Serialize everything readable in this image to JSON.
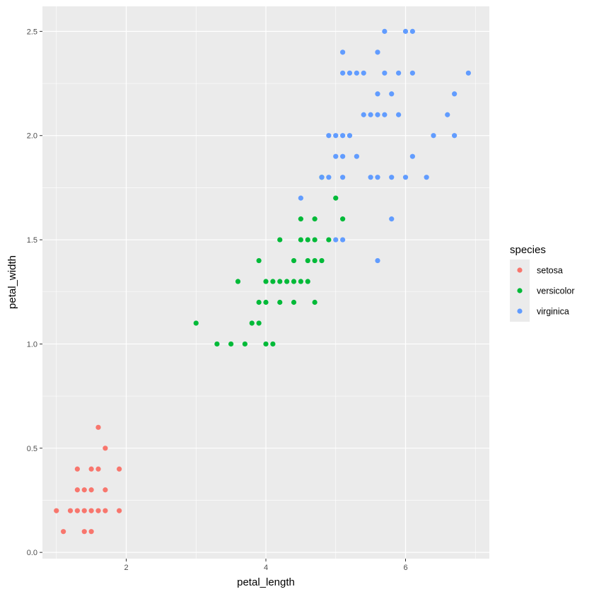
{
  "chart_data": {
    "type": "scatter",
    "title": "",
    "xlabel": "petal_length",
    "ylabel": "petal_width",
    "xlim": [
      0.8,
      7.2
    ],
    "ylim": [
      -0.03,
      2.62
    ],
    "x_ticks": [
      2,
      4,
      6
    ],
    "y_ticks": [
      0.0,
      0.5,
      1.0,
      1.5,
      2.0,
      2.5
    ],
    "x_tick_labels": [
      "2",
      "4",
      "6"
    ],
    "y_tick_labels": [
      "0.0",
      "0.5",
      "1.0",
      "1.5",
      "2.0",
      "2.5"
    ],
    "grid": true,
    "panel_background": "#ebebeb",
    "grid_color": "#ffffff",
    "legend": {
      "title": "species",
      "position": "right",
      "background": "#ebebeb"
    },
    "series": [
      {
        "name": "setosa",
        "color": "#f8766d",
        "points": [
          [
            1.0,
            0.2
          ],
          [
            1.1,
            0.1
          ],
          [
            1.2,
            0.2
          ],
          [
            1.3,
            0.2
          ],
          [
            1.3,
            0.3
          ],
          [
            1.3,
            0.4
          ],
          [
            1.4,
            0.1
          ],
          [
            1.4,
            0.2
          ],
          [
            1.4,
            0.3
          ],
          [
            1.5,
            0.1
          ],
          [
            1.5,
            0.2
          ],
          [
            1.5,
            0.3
          ],
          [
            1.5,
            0.4
          ],
          [
            1.6,
            0.2
          ],
          [
            1.6,
            0.4
          ],
          [
            1.6,
            0.6
          ],
          [
            1.7,
            0.2
          ],
          [
            1.7,
            0.3
          ],
          [
            1.7,
            0.5
          ],
          [
            1.9,
            0.2
          ],
          [
            1.9,
            0.4
          ]
        ]
      },
      {
        "name": "versicolor",
        "color": "#00ba38",
        "points": [
          [
            3.0,
            1.1
          ],
          [
            3.3,
            1.0
          ],
          [
            3.5,
            1.0
          ],
          [
            3.6,
            1.3
          ],
          [
            3.7,
            1.0
          ],
          [
            3.8,
            1.1
          ],
          [
            3.9,
            1.1
          ],
          [
            3.9,
            1.2
          ],
          [
            3.9,
            1.4
          ],
          [
            4.0,
            1.0
          ],
          [
            4.0,
            1.2
          ],
          [
            4.0,
            1.3
          ],
          [
            4.1,
            1.0
          ],
          [
            4.1,
            1.3
          ],
          [
            4.2,
            1.2
          ],
          [
            4.2,
            1.3
          ],
          [
            4.2,
            1.5
          ],
          [
            4.3,
            1.3
          ],
          [
            4.4,
            1.2
          ],
          [
            4.4,
            1.3
          ],
          [
            4.4,
            1.4
          ],
          [
            4.5,
            1.3
          ],
          [
            4.5,
            1.5
          ],
          [
            4.5,
            1.6
          ],
          [
            4.6,
            1.3
          ],
          [
            4.6,
            1.4
          ],
          [
            4.6,
            1.5
          ],
          [
            4.7,
            1.2
          ],
          [
            4.7,
            1.4
          ],
          [
            4.7,
            1.5
          ],
          [
            4.7,
            1.6
          ],
          [
            4.8,
            1.4
          ],
          [
            4.8,
            1.8
          ],
          [
            4.9,
            1.5
          ],
          [
            5.0,
            1.7
          ],
          [
            5.1,
            1.6
          ]
        ]
      },
      {
        "name": "virginica",
        "color": "#619cff",
        "points": [
          [
            4.5,
            1.7
          ],
          [
            4.8,
            1.8
          ],
          [
            4.9,
            1.8
          ],
          [
            4.9,
            2.0
          ],
          [
            5.0,
            1.5
          ],
          [
            5.0,
            1.9
          ],
          [
            5.0,
            2.0
          ],
          [
            5.1,
            1.5
          ],
          [
            5.1,
            1.8
          ],
          [
            5.1,
            1.9
          ],
          [
            5.1,
            2.0
          ],
          [
            5.1,
            2.3
          ],
          [
            5.1,
            2.4
          ],
          [
            5.2,
            2.0
          ],
          [
            5.2,
            2.3
          ],
          [
            5.3,
            1.9
          ],
          [
            5.3,
            2.3
          ],
          [
            5.4,
            2.1
          ],
          [
            5.4,
            2.3
          ],
          [
            5.5,
            1.8
          ],
          [
            5.5,
            2.1
          ],
          [
            5.6,
            1.4
          ],
          [
            5.6,
            1.8
          ],
          [
            5.6,
            2.1
          ],
          [
            5.6,
            2.2
          ],
          [
            5.6,
            2.4
          ],
          [
            5.7,
            2.1
          ],
          [
            5.7,
            2.3
          ],
          [
            5.7,
            2.5
          ],
          [
            5.8,
            1.6
          ],
          [
            5.8,
            1.8
          ],
          [
            5.8,
            2.2
          ],
          [
            5.9,
            2.1
          ],
          [
            5.9,
            2.3
          ],
          [
            6.0,
            1.8
          ],
          [
            6.0,
            2.5
          ],
          [
            6.1,
            1.9
          ],
          [
            6.1,
            2.3
          ],
          [
            6.1,
            2.5
          ],
          [
            6.3,
            1.8
          ],
          [
            6.4,
            2.0
          ],
          [
            6.6,
            2.1
          ],
          [
            6.7,
            2.0
          ],
          [
            6.7,
            2.2
          ],
          [
            6.9,
            2.3
          ]
        ]
      }
    ]
  }
}
